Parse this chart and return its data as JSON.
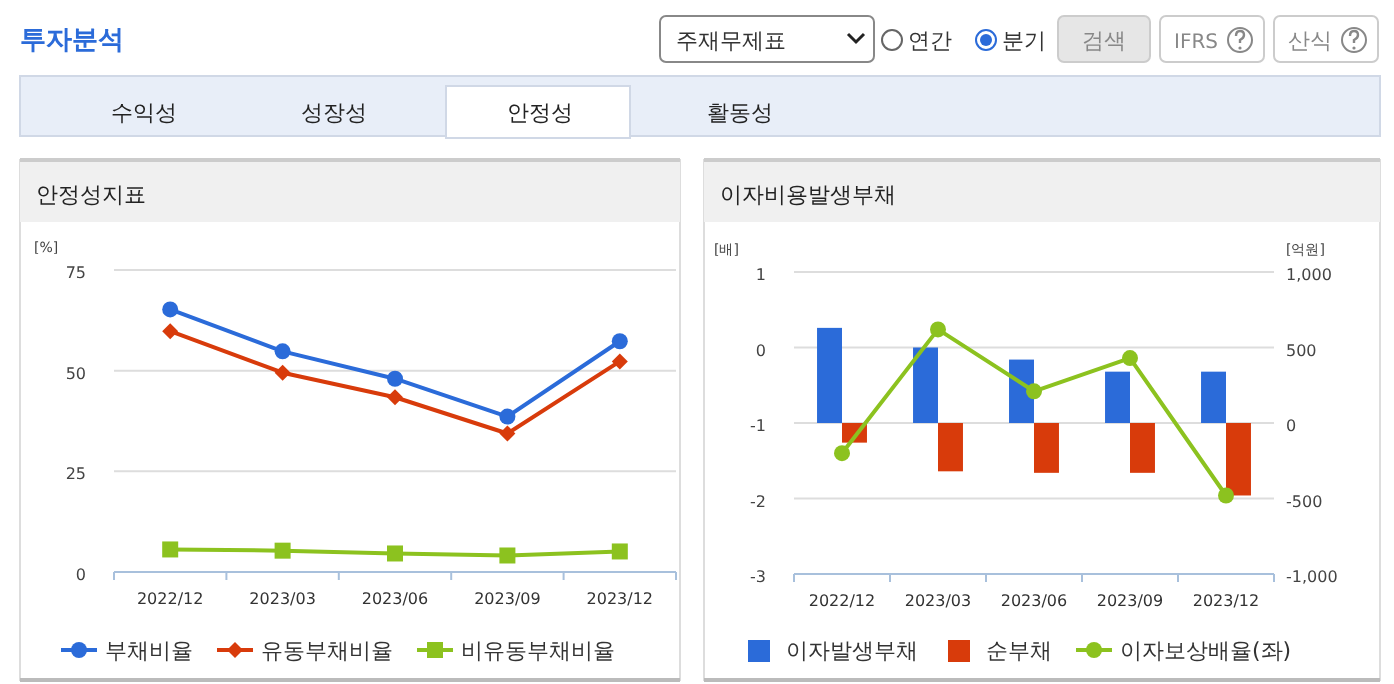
{
  "chart_data": [
    {
      "type": "other",
      "title": "투자분석",
      "annotations": [
        "주재무제표",
        "연간",
        "분기",
        "검색",
        "IFRS",
        "산식",
        "수익성",
        "성장성",
        "안정성",
        "활동성"
      ]
    },
    {
      "type": "line",
      "title": "안정성지표",
      "ylabel": "[%]",
      "categories": [
        "2022/12",
        "2023/03",
        "2023/06",
        "2023/09",
        "2023/12"
      ],
      "ylim": [
        0,
        75
      ],
      "yticks": [
        0,
        25,
        50,
        75
      ],
      "grid": "y",
      "legend": "bottom",
      "series": [
        {
          "name": "부채비율",
          "color": "#2b6bd9",
          "marker": "circle",
          "values": [
            65.2,
            54.8,
            48.0,
            38.6,
            57.3
          ]
        },
        {
          "name": "유동부채비율",
          "color": "#d83b0b",
          "marker": "diamond",
          "values": [
            59.8,
            49.5,
            43.4,
            34.4,
            52.3
          ]
        },
        {
          "name": "비유동부채비율",
          "color": "#8cc21f",
          "marker": "square",
          "values": [
            5.6,
            5.3,
            4.6,
            4.1,
            5.1
          ]
        }
      ]
    },
    {
      "type": "bar",
      "title": "이자비용발생부채",
      "ylabel": "[배]",
      "y2label": "[억원]",
      "categories": [
        "2022/12",
        "2023/03",
        "2023/06",
        "2023/09",
        "2023/12"
      ],
      "ylim": [
        -3,
        1
      ],
      "yticks": [
        -3,
        -2,
        -1,
        0,
        1
      ],
      "y2lim": [
        -1000,
        1000
      ],
      "y2ticks": [
        {
          "value": -1000,
          "label": "-1,000"
        },
        -500,
        0,
        500,
        {
          "value": 1000,
          "label": "1,000"
        }
      ],
      "grid": "y",
      "legend": "bottom",
      "series": [
        {
          "name": "이자발생부채",
          "color": "#2b6bd9",
          "axis": "y2",
          "values": [
            630,
            500,
            420,
            340,
            340
          ]
        },
        {
          "name": "순부채",
          "color": "#d83b0b",
          "axis": "y2",
          "values": [
            -130,
            -320,
            -330,
            -330,
            -480
          ]
        },
        {
          "name": "이자보상배율(좌)",
          "color": "#8cc21f",
          "type": "line",
          "marker": "circle",
          "values": [
            -1.4,
            0.24,
            -0.58,
            -0.14,
            -1.96
          ]
        }
      ]
    }
  ]
}
